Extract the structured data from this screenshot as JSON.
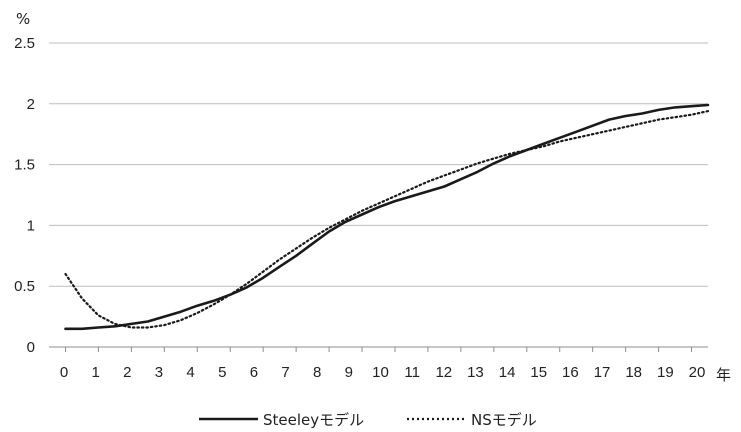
{
  "chart_data": {
    "type": "line",
    "title": "",
    "xlabel": "年",
    "ylabel": "%",
    "xlim": [
      0,
      20
    ],
    "ylim": [
      0,
      2.5
    ],
    "x_ticks": [
      "0",
      "1",
      "2",
      "3",
      "4",
      "5",
      "6",
      "7",
      "8",
      "9",
      "10",
      "11",
      "12",
      "13",
      "14",
      "15",
      "16",
      "17",
      "18",
      "19",
      "20"
    ],
    "y_ticks": [
      "0",
      "0.5",
      "1",
      "1.5",
      "2",
      "2.5"
    ],
    "grid": true,
    "legend_position": "bottom",
    "series": [
      {
        "name": "Steeleyモデル",
        "style": "solid",
        "color": "#1a1a1a",
        "x": [
          0.5,
          1,
          1.5,
          2,
          2.5,
          3,
          3.5,
          4,
          4.5,
          5,
          5.5,
          6,
          6.5,
          7,
          7.5,
          8,
          8.5,
          9,
          9.5,
          10,
          10.5,
          11,
          11.5,
          12,
          12.5,
          13,
          13.5,
          14,
          14.5,
          15,
          15.5,
          16,
          16.5,
          17,
          17.5,
          18,
          18.5,
          19,
          19.5,
          20
        ],
        "values": [
          0.15,
          0.15,
          0.16,
          0.17,
          0.19,
          0.21,
          0.25,
          0.29,
          0.34,
          0.38,
          0.43,
          0.49,
          0.57,
          0.66,
          0.75,
          0.85,
          0.95,
          1.03,
          1.09,
          1.15,
          1.2,
          1.24,
          1.28,
          1.32,
          1.38,
          1.44,
          1.51,
          1.57,
          1.62,
          1.67,
          1.72,
          1.77,
          1.82,
          1.87,
          1.9,
          1.92,
          1.95,
          1.97,
          1.98,
          1.99
        ]
      },
      {
        "name": "NSモデル",
        "style": "dotted",
        "color": "#1a1a1a",
        "x": [
          0.5,
          1,
          1.5,
          2,
          2.5,
          3,
          3.5,
          4,
          4.5,
          5,
          5.5,
          6,
          6.5,
          7,
          7.5,
          8,
          8.5,
          9,
          9.5,
          10,
          10.5,
          11,
          11.5,
          12,
          12.5,
          13,
          13.5,
          14,
          14.5,
          15,
          15.5,
          16,
          16.5,
          17,
          17.5,
          18,
          18.5,
          19,
          19.5,
          20
        ],
        "values": [
          0.6,
          0.4,
          0.26,
          0.19,
          0.16,
          0.16,
          0.18,
          0.22,
          0.28,
          0.35,
          0.43,
          0.52,
          0.62,
          0.72,
          0.81,
          0.9,
          0.98,
          1.05,
          1.12,
          1.18,
          1.24,
          1.3,
          1.36,
          1.41,
          1.46,
          1.51,
          1.55,
          1.59,
          1.62,
          1.65,
          1.69,
          1.72,
          1.75,
          1.78,
          1.81,
          1.84,
          1.87,
          1.89,
          1.91,
          1.94
        ]
      }
    ]
  }
}
